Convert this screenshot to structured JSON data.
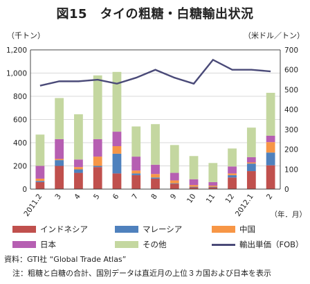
{
  "title": "図15　タイの粗糖・白糖輸出状況",
  "unit_left": "（千トン）",
  "unit_right": "（米ドル／トン）",
  "source_note": "資料：GTI社 “Global Trade Atlas”",
  "footnote": "注：粗糖と白糖の合計、国別データは直近月の上位３カ国および日本を表示",
  "chart_data": {
    "type": "bar",
    "stacked": true,
    "categories": [
      "2011.2",
      "3",
      "4",
      "5",
      "6",
      "7",
      "8",
      "9",
      "10",
      "11",
      "12",
      "2012.1",
      "2"
    ],
    "x_unit_label": "（年．月）",
    "y_left": {
      "min": 0,
      "max": 1200,
      "step": 200,
      "ticks": [
        "0",
        "200",
        "400",
        "600",
        "800",
        "1,000",
        "1,200"
      ]
    },
    "y_right": {
      "min": 0,
      "max": 700,
      "step": 100,
      "ticks": [
        "0",
        "100",
        "200",
        "300",
        "400",
        "500",
        "600",
        "700"
      ]
    },
    "series": [
      {
        "name": "インドネシア",
        "color": "#c0504d",
        "values": [
          60,
          200,
          140,
          190,
          135,
          120,
          90,
          45,
          15,
          15,
          100,
          155,
          205
        ]
      },
      {
        "name": "マレーシア",
        "color": "#4f81bd",
        "values": [
          10,
          50,
          30,
          10,
          170,
          15,
          10,
          5,
          5,
          5,
          20,
          65,
          110
        ]
      },
      {
        "name": "中国",
        "color": "#f79646",
        "values": [
          20,
          10,
          20,
          80,
          65,
          25,
          30,
          25,
          15,
          10,
          15,
          10,
          90
        ]
      },
      {
        "name": "日本",
        "color": "#b65fb2",
        "values": [
          110,
          170,
          65,
          150,
          125,
          120,
          80,
          65,
          50,
          30,
          60,
          45,
          55
        ]
      },
      {
        "name": "その他",
        "color": "#c4d7a0",
        "values": [
          270,
          355,
          390,
          550,
          515,
          260,
          350,
          240,
          200,
          165,
          155,
          255,
          370
        ]
      }
    ],
    "line": {
      "name": "輸出単価（FOB）",
      "color": "#4a4a78",
      "axis": "right",
      "values": [
        520,
        542,
        542,
        550,
        530,
        560,
        600,
        560,
        530,
        650,
        600,
        600,
        592
      ]
    },
    "grid": true
  }
}
